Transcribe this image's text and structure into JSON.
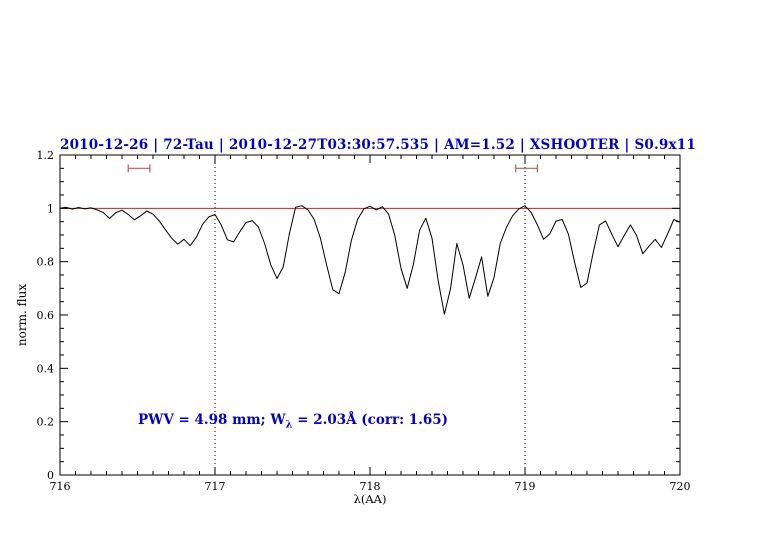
{
  "colors": {
    "title_blue": "#0000cd",
    "annotation_blue": "#0000cd",
    "continuum_red": "#cc2222",
    "marker_red": "#cc5555",
    "line_black": "#000000"
  },
  "chart_data": {
    "type": "line",
    "title": "2010-12-26 | 72-Tau | 2010-12-27T03:30:57.535 | AM=1.52 | XSHOOTER | S0.9x11",
    "xlabel": "λ(AA)",
    "ylabel": "norm. flux",
    "xlim": [
      716,
      720
    ],
    "ylim": [
      0,
      1.2
    ],
    "xticks": [
      716,
      717,
      718,
      719,
      720
    ],
    "xtick_labels": [
      "716",
      "717",
      "718",
      "719",
      "720"
    ],
    "yticks": [
      0,
      0.2,
      0.4,
      0.6,
      0.8,
      1,
      1.2
    ],
    "ytick_labels": [
      "0",
      "0.2",
      "0.4",
      "0.6",
      "0.8",
      "1",
      "1.2"
    ],
    "grid": false,
    "legend": "none",
    "annotation": {
      "prefix": "PWV = 4.98 mm; W",
      "sub": "λ",
      "suffix": " = 2.03Å (corr: 1.65)"
    },
    "reference_lines": {
      "horizontal": [
        {
          "y": 1.0,
          "color": "#cc2222",
          "style": "solid",
          "meaning": "continuum level"
        }
      ],
      "vertical": [
        {
          "x": 717,
          "color": "#000000",
          "style": "dotted"
        },
        {
          "x": 719,
          "color": "#000000",
          "style": "dotted"
        }
      ]
    },
    "range_markers": [
      {
        "x1": 716.44,
        "x2": 716.58,
        "y": 1.15,
        "color": "#cc5555"
      },
      {
        "x1": 718.94,
        "x2": 719.08,
        "y": 1.15,
        "color": "#cc5555"
      }
    ],
    "series": [
      {
        "name": "telluric-spectrum",
        "color": "#000000",
        "points": [
          [
            716.0,
            1.0
          ],
          [
            716.04,
            1.004
          ],
          [
            716.08,
            0.997
          ],
          [
            716.12,
            1.003
          ],
          [
            716.16,
            0.998
          ],
          [
            716.2,
            1.002
          ],
          [
            716.24,
            0.994
          ],
          [
            716.28,
            0.984
          ],
          [
            716.32,
            0.962
          ],
          [
            716.36,
            0.984
          ],
          [
            716.4,
            0.993
          ],
          [
            716.44,
            0.977
          ],
          [
            716.48,
            0.957
          ],
          [
            716.52,
            0.972
          ],
          [
            716.56,
            0.99
          ],
          [
            716.6,
            0.978
          ],
          [
            716.64,
            0.953
          ],
          [
            716.68,
            0.92
          ],
          [
            716.72,
            0.888
          ],
          [
            716.76,
            0.866
          ],
          [
            716.8,
            0.884
          ],
          [
            716.84,
            0.86
          ],
          [
            716.88,
            0.892
          ],
          [
            716.92,
            0.94
          ],
          [
            716.96,
            0.968
          ],
          [
            717.0,
            0.977
          ],
          [
            717.04,
            0.938
          ],
          [
            717.08,
            0.882
          ],
          [
            717.12,
            0.874
          ],
          [
            717.16,
            0.912
          ],
          [
            717.2,
            0.947
          ],
          [
            717.24,
            0.954
          ],
          [
            717.28,
            0.93
          ],
          [
            717.32,
            0.868
          ],
          [
            717.36,
            0.788
          ],
          [
            717.4,
            0.737
          ],
          [
            717.44,
            0.78
          ],
          [
            717.48,
            0.905
          ],
          [
            717.52,
            1.004
          ],
          [
            717.56,
            1.01
          ],
          [
            717.6,
            0.994
          ],
          [
            717.64,
            0.958
          ],
          [
            717.68,
            0.888
          ],
          [
            717.72,
            0.788
          ],
          [
            717.76,
            0.695
          ],
          [
            717.8,
            0.68
          ],
          [
            717.84,
            0.76
          ],
          [
            717.88,
            0.88
          ],
          [
            717.92,
            0.958
          ],
          [
            717.96,
            0.998
          ],
          [
            718.0,
            1.008
          ],
          [
            718.04,
            0.994
          ],
          [
            718.08,
            1.006
          ],
          [
            718.12,
            0.978
          ],
          [
            718.16,
            0.898
          ],
          [
            718.2,
            0.775
          ],
          [
            718.24,
            0.7
          ],
          [
            718.28,
            0.79
          ],
          [
            718.32,
            0.918
          ],
          [
            718.36,
            0.963
          ],
          [
            718.4,
            0.888
          ],
          [
            718.44,
            0.728
          ],
          [
            718.48,
            0.603
          ],
          [
            718.52,
            0.7
          ],
          [
            718.56,
            0.868
          ],
          [
            718.6,
            0.788
          ],
          [
            718.64,
            0.663
          ],
          [
            718.68,
            0.738
          ],
          [
            718.72,
            0.818
          ],
          [
            718.76,
            0.67
          ],
          [
            718.8,
            0.74
          ],
          [
            718.84,
            0.868
          ],
          [
            718.88,
            0.928
          ],
          [
            718.92,
            0.972
          ],
          [
            718.96,
            0.998
          ],
          [
            719.0,
            1.01
          ],
          [
            719.04,
            0.984
          ],
          [
            719.08,
            0.938
          ],
          [
            719.12,
            0.884
          ],
          [
            719.16,
            0.904
          ],
          [
            719.2,
            0.952
          ],
          [
            719.24,
            0.958
          ],
          [
            719.28,
            0.903
          ],
          [
            719.32,
            0.798
          ],
          [
            719.36,
            0.703
          ],
          [
            719.4,
            0.72
          ],
          [
            719.44,
            0.834
          ],
          [
            719.48,
            0.938
          ],
          [
            719.52,
            0.953
          ],
          [
            719.56,
            0.903
          ],
          [
            719.6,
            0.856
          ],
          [
            719.64,
            0.898
          ],
          [
            719.68,
            0.938
          ],
          [
            719.72,
            0.898
          ],
          [
            719.76,
            0.83
          ],
          [
            719.8,
            0.858
          ],
          [
            719.84,
            0.884
          ],
          [
            719.88,
            0.853
          ],
          [
            719.92,
            0.904
          ],
          [
            719.96,
            0.958
          ],
          [
            720.0,
            0.948
          ]
        ]
      }
    ]
  }
}
